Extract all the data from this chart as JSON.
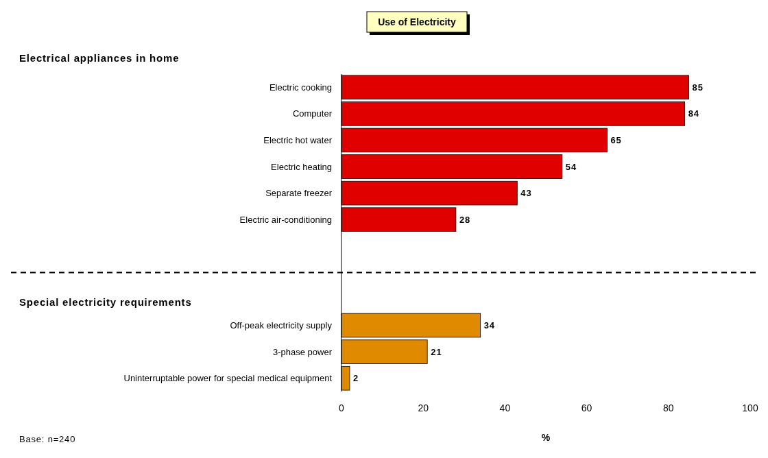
{
  "chart_data": {
    "type": "bar",
    "orientation": "horizontal",
    "title": "Use of Electricity",
    "xlabel": "%",
    "categories": [
      "Electric cooking",
      "Computer",
      "Electric hot water",
      "Electric heating",
      "Separate freezer",
      "Electric air-conditioning",
      null,
      null,
      null,
      "Off-peak electricity supply",
      "3-phase power",
      "Uninterruptable power for special medical equipment"
    ],
    "values": [
      85,
      84,
      65,
      54,
      43,
      28,
      null,
      null,
      null,
      34,
      21,
      2
    ],
    "colors": [
      "#e00000",
      "#e00000",
      "#e00000",
      "#e00000",
      "#e00000",
      "#e00000",
      null,
      null,
      null,
      "#e08a00",
      "#e08a00",
      "#e08a00"
    ],
    "xlim": [
      0,
      100
    ],
    "xticks": [
      0,
      20,
      40,
      60,
      80,
      100
    ],
    "data_labels": true,
    "grid": false,
    "annotations": [
      "Electrical appliances in home",
      "Special electricity requirements",
      "Base: n=240"
    ]
  }
}
